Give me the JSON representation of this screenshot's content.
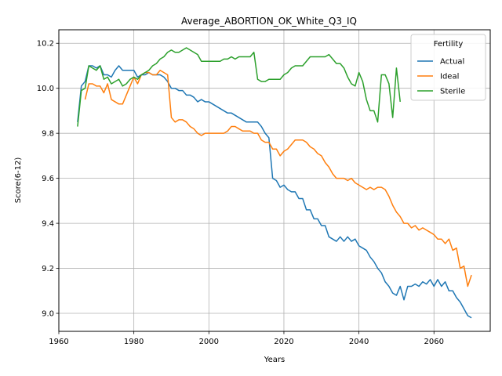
{
  "chart_data": {
    "type": "line",
    "title": "Average_ABORTION_OK_White_Q3_IQ",
    "xlabel": "Years",
    "ylabel": "Score(6-12)",
    "xlim": [
      1960,
      2075
    ],
    "ylim": [
      8.92,
      10.26
    ],
    "xticks": [
      1960,
      1980,
      2000,
      2020,
      2040,
      2060
    ],
    "yticks": [
      9.0,
      9.2,
      9.4,
      9.6,
      9.8,
      10.0,
      10.2
    ],
    "ytick_labels": [
      "9.0",
      "9.2",
      "9.4",
      "9.6",
      "9.8",
      "10.0",
      "10.2"
    ],
    "grid": true,
    "legend": {
      "title": "Fertility",
      "placement": "top-right"
    },
    "series": [
      {
        "name": "Actual",
        "color": "#1f77b4",
        "points": [
          [
            1965,
            9.85
          ],
          [
            1966,
            10.01
          ],
          [
            1967,
            10.03
          ],
          [
            1968,
            10.1
          ],
          [
            1969,
            10.1
          ],
          [
            1970,
            10.09
          ],
          [
            1971,
            10.1
          ],
          [
            1972,
            10.06
          ],
          [
            1973,
            10.06
          ],
          [
            1974,
            10.05
          ],
          [
            1975,
            10.08
          ],
          [
            1976,
            10.1
          ],
          [
            1977,
            10.08
          ],
          [
            1978,
            10.08
          ],
          [
            1979,
            10.08
          ],
          [
            1980,
            10.08
          ],
          [
            1981,
            10.05
          ],
          [
            1982,
            10.06
          ],
          [
            1983,
            10.06
          ],
          [
            1984,
            10.07
          ],
          [
            1985,
            10.06
          ],
          [
            1986,
            10.06
          ],
          [
            1987,
            10.06
          ],
          [
            1988,
            10.05
          ],
          [
            1989,
            10.03
          ],
          [
            1990,
            10.0
          ],
          [
            1991,
            10.0
          ],
          [
            1992,
            9.99
          ],
          [
            1993,
            9.99
          ],
          [
            1994,
            9.97
          ],
          [
            1995,
            9.97
          ],
          [
            1996,
            9.96
          ],
          [
            1997,
            9.94
          ],
          [
            1998,
            9.95
          ],
          [
            1999,
            9.94
          ],
          [
            2000,
            9.94
          ],
          [
            2001,
            9.93
          ],
          [
            2002,
            9.92
          ],
          [
            2003,
            9.91
          ],
          [
            2004,
            9.9
          ],
          [
            2005,
            9.89
          ],
          [
            2006,
            9.89
          ],
          [
            2007,
            9.88
          ],
          [
            2008,
            9.87
          ],
          [
            2009,
            9.86
          ],
          [
            2010,
            9.85
          ],
          [
            2011,
            9.85
          ],
          [
            2012,
            9.85
          ],
          [
            2013,
            9.85
          ],
          [
            2014,
            9.83
          ],
          [
            2015,
            9.8
          ],
          [
            2016,
            9.78
          ],
          [
            2017,
            9.6
          ],
          [
            2018,
            9.59
          ],
          [
            2019,
            9.56
          ],
          [
            2020,
            9.57
          ],
          [
            2021,
            9.55
          ],
          [
            2022,
            9.54
          ],
          [
            2023,
            9.54
          ],
          [
            2024,
            9.51
          ],
          [
            2025,
            9.51
          ],
          [
            2026,
            9.46
          ],
          [
            2027,
            9.46
          ],
          [
            2028,
            9.42
          ],
          [
            2029,
            9.42
          ],
          [
            2030,
            9.39
          ],
          [
            2031,
            9.39
          ],
          [
            2032,
            9.34
          ],
          [
            2033,
            9.33
          ],
          [
            2034,
            9.32
          ],
          [
            2035,
            9.34
          ],
          [
            2036,
            9.32
          ],
          [
            2037,
            9.34
          ],
          [
            2038,
            9.32
          ],
          [
            2039,
            9.33
          ],
          [
            2040,
            9.3
          ],
          [
            2041,
            9.29
          ],
          [
            2042,
            9.28
          ],
          [
            2043,
            9.25
          ],
          [
            2044,
            9.23
          ],
          [
            2045,
            9.2
          ],
          [
            2046,
            9.18
          ],
          [
            2047,
            9.14
          ],
          [
            2048,
            9.12
          ],
          [
            2049,
            9.09
          ],
          [
            2050,
            9.08
          ],
          [
            2051,
            9.12
          ],
          [
            2052,
            9.06
          ],
          [
            2053,
            9.12
          ],
          [
            2054,
            9.12
          ],
          [
            2055,
            9.13
          ],
          [
            2056,
            9.12
          ],
          [
            2057,
            9.14
          ],
          [
            2058,
            9.13
          ],
          [
            2059,
            9.15
          ],
          [
            2060,
            9.12
          ],
          [
            2061,
            9.15
          ],
          [
            2062,
            9.12
          ],
          [
            2063,
            9.14
          ],
          [
            2064,
            9.1
          ],
          [
            2065,
            9.1
          ],
          [
            2066,
            9.07
          ],
          [
            2067,
            9.05
          ],
          [
            2068,
            9.02
          ],
          [
            2069,
            8.99
          ],
          [
            2070,
            8.98
          ]
        ]
      },
      {
        "name": "Ideal",
        "color": "#ff7f0e",
        "points": [
          [
            1967,
            9.95
          ],
          [
            1968,
            10.02
          ],
          [
            1969,
            10.02
          ],
          [
            1970,
            10.01
          ],
          [
            1971,
            10.01
          ],
          [
            1972,
            9.98
          ],
          [
            1973,
            10.02
          ],
          [
            1974,
            9.95
          ],
          [
            1975,
            9.94
          ],
          [
            1976,
            9.93
          ],
          [
            1977,
            9.93
          ],
          [
            1978,
            9.97
          ],
          [
            1979,
            10.01
          ],
          [
            1980,
            10.05
          ],
          [
            1981,
            10.02
          ],
          [
            1982,
            10.06
          ],
          [
            1983,
            10.07
          ],
          [
            1984,
            10.07
          ],
          [
            1985,
            10.06
          ],
          [
            1986,
            10.06
          ],
          [
            1987,
            10.08
          ],
          [
            1988,
            10.07
          ],
          [
            1989,
            10.06
          ],
          [
            1990,
            9.87
          ],
          [
            1991,
            9.85
          ],
          [
            1992,
            9.86
          ],
          [
            1993,
            9.86
          ],
          [
            1994,
            9.85
          ],
          [
            1995,
            9.83
          ],
          [
            1996,
            9.82
          ],
          [
            1997,
            9.8
          ],
          [
            1998,
            9.79
          ],
          [
            1999,
            9.8
          ],
          [
            2000,
            9.8
          ],
          [
            2001,
            9.8
          ],
          [
            2002,
            9.8
          ],
          [
            2003,
            9.8
          ],
          [
            2004,
            9.8
          ],
          [
            2005,
            9.81
          ],
          [
            2006,
            9.83
          ],
          [
            2007,
            9.83
          ],
          [
            2008,
            9.82
          ],
          [
            2009,
            9.81
          ],
          [
            2010,
            9.81
          ],
          [
            2011,
            9.81
          ],
          [
            2012,
            9.8
          ],
          [
            2013,
            9.8
          ],
          [
            2014,
            9.77
          ],
          [
            2015,
            9.76
          ],
          [
            2016,
            9.76
          ],
          [
            2017,
            9.73
          ],
          [
            2018,
            9.73
          ],
          [
            2019,
            9.7
          ],
          [
            2020,
            9.72
          ],
          [
            2021,
            9.73
          ],
          [
            2022,
            9.75
          ],
          [
            2023,
            9.77
          ],
          [
            2024,
            9.77
          ],
          [
            2025,
            9.77
          ],
          [
            2026,
            9.76
          ],
          [
            2027,
            9.74
          ],
          [
            2028,
            9.73
          ],
          [
            2029,
            9.71
          ],
          [
            2030,
            9.7
          ],
          [
            2031,
            9.67
          ],
          [
            2032,
            9.65
          ],
          [
            2033,
            9.62
          ],
          [
            2034,
            9.6
          ],
          [
            2035,
            9.6
          ],
          [
            2036,
            9.6
          ],
          [
            2037,
            9.59
          ],
          [
            2038,
            9.6
          ],
          [
            2039,
            9.58
          ],
          [
            2040,
            9.57
          ],
          [
            2041,
            9.56
          ],
          [
            2042,
            9.55
          ],
          [
            2043,
            9.56
          ],
          [
            2044,
            9.55
          ],
          [
            2045,
            9.56
          ],
          [
            2046,
            9.56
          ],
          [
            2047,
            9.55
          ],
          [
            2048,
            9.52
          ],
          [
            2049,
            9.48
          ],
          [
            2050,
            9.45
          ],
          [
            2051,
            9.43
          ],
          [
            2052,
            9.4
          ],
          [
            2053,
            9.4
          ],
          [
            2054,
            9.38
          ],
          [
            2055,
            9.39
          ],
          [
            2056,
            9.37
          ],
          [
            2057,
            9.38
          ],
          [
            2058,
            9.37
          ],
          [
            2059,
            9.36
          ],
          [
            2060,
            9.35
          ],
          [
            2061,
            9.33
          ],
          [
            2062,
            9.33
          ],
          [
            2063,
            9.31
          ],
          [
            2064,
            9.33
          ],
          [
            2065,
            9.28
          ],
          [
            2066,
            9.29
          ],
          [
            2067,
            9.2
          ],
          [
            2068,
            9.21
          ],
          [
            2069,
            9.12
          ],
          [
            2070,
            9.17
          ]
        ]
      },
      {
        "name": "Sterile",
        "color": "#2ca02c",
        "points": [
          [
            1965,
            9.83
          ],
          [
            1966,
            9.99
          ],
          [
            1967,
            10.0
          ],
          [
            1968,
            10.1
          ],
          [
            1969,
            10.09
          ],
          [
            1970,
            10.08
          ],
          [
            1971,
            10.1
          ],
          [
            1972,
            10.04
          ],
          [
            1973,
            10.05
          ],
          [
            1974,
            10.02
          ],
          [
            1975,
            10.03
          ],
          [
            1976,
            10.04
          ],
          [
            1977,
            10.01
          ],
          [
            1978,
            10.02
          ],
          [
            1979,
            10.04
          ],
          [
            1980,
            10.05
          ],
          [
            1981,
            10.04
          ],
          [
            1982,
            10.06
          ],
          [
            1983,
            10.07
          ],
          [
            1984,
            10.08
          ],
          [
            1985,
            10.1
          ],
          [
            1986,
            10.11
          ],
          [
            1987,
            10.13
          ],
          [
            1988,
            10.14
          ],
          [
            1989,
            10.16
          ],
          [
            1990,
            10.17
          ],
          [
            1991,
            10.16
          ],
          [
            1992,
            10.16
          ],
          [
            1993,
            10.17
          ],
          [
            1994,
            10.18
          ],
          [
            1995,
            10.17
          ],
          [
            1996,
            10.16
          ],
          [
            1997,
            10.15
          ],
          [
            1998,
            10.12
          ],
          [
            1999,
            10.12
          ],
          [
            2000,
            10.12
          ],
          [
            2001,
            10.12
          ],
          [
            2002,
            10.12
          ],
          [
            2003,
            10.12
          ],
          [
            2004,
            10.13
          ],
          [
            2005,
            10.13
          ],
          [
            2006,
            10.14
          ],
          [
            2007,
            10.13
          ],
          [
            2008,
            10.14
          ],
          [
            2009,
            10.14
          ],
          [
            2010,
            10.14
          ],
          [
            2011,
            10.14
          ],
          [
            2012,
            10.16
          ],
          [
            2013,
            10.04
          ],
          [
            2014,
            10.03
          ],
          [
            2015,
            10.03
          ],
          [
            2016,
            10.04
          ],
          [
            2017,
            10.04
          ],
          [
            2018,
            10.04
          ],
          [
            2019,
            10.04
          ],
          [
            2020,
            10.06
          ],
          [
            2021,
            10.07
          ],
          [
            2022,
            10.09
          ],
          [
            2023,
            10.1
          ],
          [
            2024,
            10.1
          ],
          [
            2025,
            10.1
          ],
          [
            2026,
            10.12
          ],
          [
            2027,
            10.14
          ],
          [
            2028,
            10.14
          ],
          [
            2029,
            10.14
          ],
          [
            2030,
            10.14
          ],
          [
            2031,
            10.14
          ],
          [
            2032,
            10.15
          ],
          [
            2033,
            10.13
          ],
          [
            2034,
            10.11
          ],
          [
            2035,
            10.11
          ],
          [
            2036,
            10.09
          ],
          [
            2037,
            10.05
          ],
          [
            2038,
            10.02
          ],
          [
            2039,
            10.01
          ],
          [
            2040,
            10.07
          ],
          [
            2041,
            10.03
          ],
          [
            2042,
            9.95
          ],
          [
            2043,
            9.9
          ],
          [
            2044,
            9.9
          ],
          [
            2045,
            9.85
          ],
          [
            2046,
            10.06
          ],
          [
            2047,
            10.06
          ],
          [
            2048,
            10.02
          ],
          [
            2049,
            9.87
          ],
          [
            2050,
            10.09
          ],
          [
            2051,
            9.94
          ]
        ]
      }
    ]
  }
}
